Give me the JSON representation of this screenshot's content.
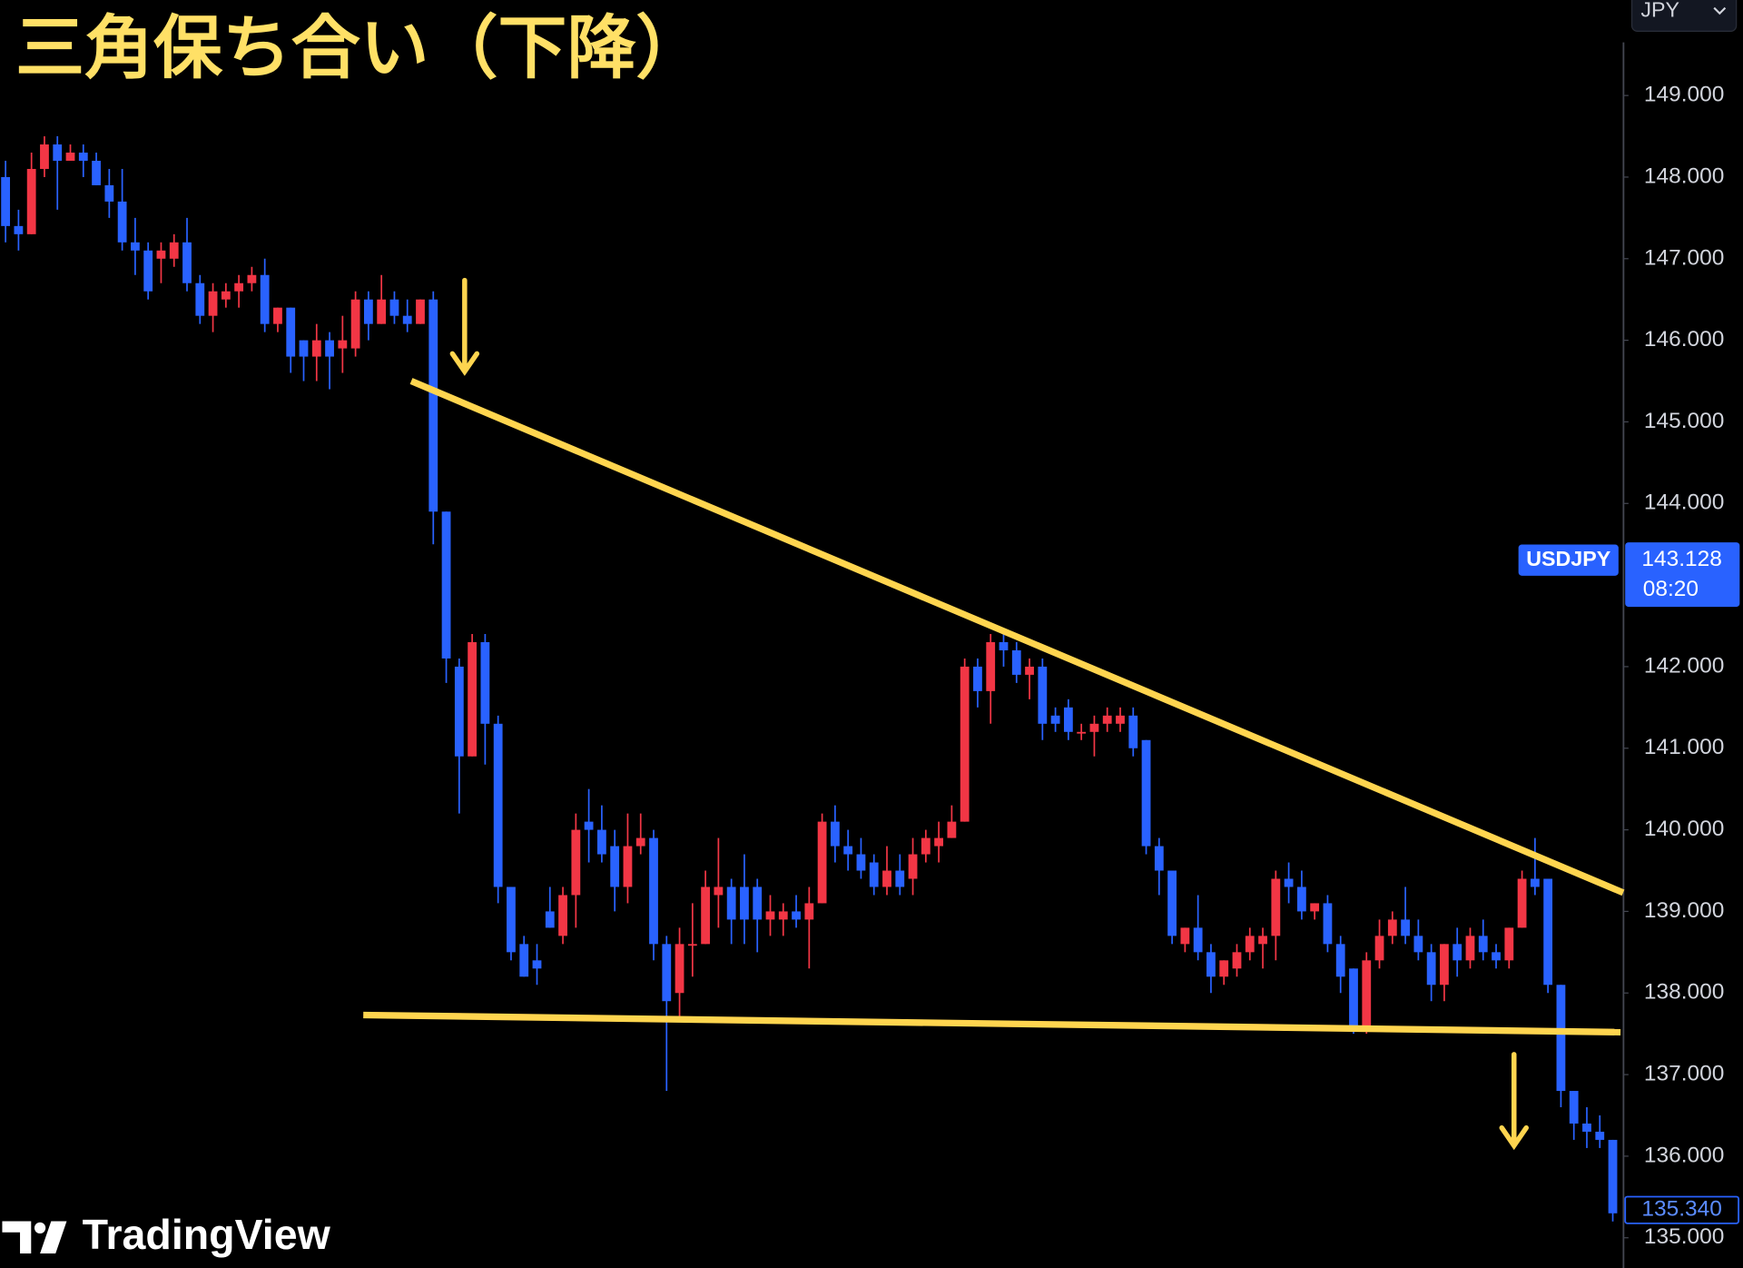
{
  "chart_data": {
    "type": "candlestick",
    "title": "三角保ち合い（下降）",
    "symbol": "USDJPY",
    "quote_currency": "JPY",
    "watermark": "TradingView",
    "up_color": "#f23645",
    "down_color": "#2962ff",
    "open": [
      148.0,
      147.4,
      147.3,
      148.1,
      148.4,
      148.2,
      148.3,
      148.2,
      147.9,
      147.7,
      147.2,
      147.1,
      147.0,
      147.0,
      147.2,
      146.7,
      146.3,
      146.5,
      146.6,
      146.7,
      146.8,
      146.2,
      146.4,
      146.0,
      145.8,
      146.0,
      145.9,
      145.9,
      146.5,
      146.2,
      146.5,
      146.3,
      146.2,
      146.5,
      143.9,
      142.0,
      140.9,
      142.3,
      141.3,
      139.3,
      138.6,
      138.4,
      139.0,
      138.7,
      139.2,
      140.1,
      140.0,
      139.8,
      139.3,
      139.8,
      139.9,
      138.6,
      138.0,
      138.6,
      138.6,
      139.2,
      139.3,
      139.3,
      139.3,
      138.9,
      138.9,
      139.0,
      138.9,
      139.1,
      140.1,
      139.8,
      139.7,
      139.6,
      139.3,
      139.5,
      139.4,
      139.7,
      139.8,
      139.9,
      140.1,
      142.0,
      141.7,
      142.3,
      142.2,
      141.9,
      142.0,
      141.4,
      141.5,
      141.2,
      141.2,
      141.3,
      141.3,
      141.4,
      141.1,
      139.8,
      139.5,
      138.6,
      138.8,
      138.5,
      138.2,
      138.3,
      138.5,
      138.6,
      138.7,
      139.4,
      139.3,
      139.0,
      139.1,
      138.6,
      138.3,
      137.6,
      138.4,
      138.7,
      138.9,
      138.7,
      138.5,
      138.1,
      138.6,
      138.4,
      138.7,
      138.5,
      138.4,
      138.8,
      139.4,
      139.4,
      138.1,
      136.8,
      136.4,
      136.3,
      136.2
    ],
    "high": [
      148.2,
      147.6,
      148.3,
      148.5,
      148.5,
      148.4,
      148.4,
      148.3,
      148.1,
      148.1,
      147.5,
      147.2,
      147.2,
      147.3,
      147.5,
      146.8,
      146.7,
      146.7,
      146.8,
      146.9,
      147.0,
      146.4,
      146.4,
      146.0,
      146.2,
      146.1,
      146.3,
      146.6,
      146.6,
      146.8,
      146.6,
      146.5,
      146.5,
      146.6,
      143.9,
      142.1,
      142.4,
      142.4,
      141.4,
      139.3,
      138.7,
      138.6,
      139.3,
      139.3,
      140.2,
      140.5,
      140.3,
      140.0,
      140.2,
      140.2,
      140.0,
      138.7,
      138.8,
      139.1,
      139.5,
      139.9,
      139.4,
      139.7,
      139.4,
      139.2,
      139.1,
      139.2,
      139.3,
      140.2,
      140.3,
      140.0,
      139.9,
      139.7,
      139.8,
      139.7,
      139.9,
      140.0,
      140.1,
      140.3,
      142.1,
      142.1,
      142.4,
      142.4,
      142.3,
      142.1,
      142.1,
      141.5,
      141.6,
      141.3,
      141.4,
      141.5,
      141.5,
      141.5,
      141.1,
      139.9,
      139.5,
      138.8,
      139.2,
      138.6,
      138.4,
      138.6,
      138.8,
      138.8,
      139.5,
      139.6,
      139.5,
      139.1,
      139.2,
      138.7,
      138.3,
      138.5,
      138.9,
      139.0,
      139.3,
      138.9,
      138.6,
      138.6,
      138.8,
      138.8,
      138.9,
      138.6,
      138.8,
      139.5,
      139.9,
      139.4,
      138.1,
      136.8,
      136.6,
      136.5,
      136.2
    ],
    "low": [
      147.2,
      147.1,
      147.3,
      148.0,
      147.6,
      148.2,
      148.0,
      147.9,
      147.5,
      147.1,
      146.8,
      146.5,
      146.7,
      146.9,
      146.6,
      146.2,
      146.1,
      146.4,
      146.4,
      146.6,
      146.1,
      146.1,
      145.6,
      145.5,
      145.5,
      145.4,
      145.6,
      145.8,
      146.0,
      146.2,
      146.2,
      146.1,
      146.2,
      143.5,
      141.8,
      140.2,
      140.9,
      140.8,
      139.1,
      138.4,
      138.2,
      138.1,
      138.8,
      138.6,
      138.8,
      139.6,
      139.6,
      139.0,
      139.1,
      139.7,
      138.4,
      136.8,
      137.7,
      138.2,
      138.6,
      138.8,
      138.6,
      138.6,
      138.5,
      138.7,
      138.7,
      138.8,
      138.3,
      139.1,
      139.6,
      139.5,
      139.4,
      139.2,
      139.2,
      139.2,
      139.2,
      139.6,
      139.6,
      139.9,
      140.1,
      141.5,
      141.3,
      142.0,
      141.8,
      141.6,
      141.1,
      141.2,
      141.1,
      141.1,
      140.9,
      141.2,
      141.2,
      140.9,
      139.7,
      139.2,
      138.6,
      138.5,
      138.4,
      138.0,
      138.1,
      138.2,
      138.4,
      138.3,
      138.4,
      139.1,
      138.9,
      138.9,
      138.5,
      138.0,
      137.5,
      137.5,
      138.3,
      138.6,
      138.6,
      138.4,
      137.9,
      137.9,
      138.2,
      138.3,
      138.4,
      138.3,
      138.3,
      138.8,
      139.2,
      138.0,
      136.6,
      136.2,
      136.1,
      136.1,
      135.2
    ],
    "close": [
      147.4,
      147.3,
      148.1,
      148.4,
      148.2,
      148.3,
      148.2,
      147.9,
      147.7,
      147.2,
      147.1,
      146.6,
      147.1,
      147.2,
      146.7,
      146.3,
      146.6,
      146.6,
      146.7,
      146.8,
      146.2,
      146.4,
      145.8,
      145.8,
      146.0,
      145.8,
      146.0,
      146.5,
      146.2,
      146.5,
      146.3,
      146.2,
      146.5,
      143.9,
      142.1,
      140.9,
      142.3,
      141.3,
      139.3,
      138.5,
      138.2,
      138.3,
      138.8,
      139.2,
      140.0,
      140.0,
      139.7,
      139.3,
      139.8,
      139.9,
      138.6,
      137.9,
      138.6,
      138.6,
      139.3,
      139.3,
      138.9,
      138.9,
      138.9,
      139.0,
      139.0,
      138.9,
      139.1,
      140.1,
      139.8,
      139.7,
      139.5,
      139.3,
      139.5,
      139.3,
      139.7,
      139.9,
      139.9,
      140.1,
      142.0,
      141.7,
      142.3,
      142.2,
      141.9,
      142.0,
      141.3,
      141.3,
      141.2,
      141.2,
      141.3,
      141.4,
      141.4,
      141.0,
      139.8,
      139.5,
      138.7,
      138.8,
      138.5,
      138.2,
      138.4,
      138.5,
      138.7,
      138.7,
      139.4,
      139.3,
      139.0,
      139.1,
      138.6,
      138.2,
      137.6,
      138.4,
      138.7,
      138.9,
      138.7,
      138.5,
      138.1,
      138.6,
      138.4,
      138.7,
      138.5,
      138.4,
      138.8,
      139.4,
      139.3,
      138.1,
      136.8,
      136.4,
      136.3,
      136.2,
      135.3
    ],
    "ylim": [
      134.63,
      150.17
    ],
    "yticks": [
      {
        "value": 135,
        "label": "135.000"
      },
      {
        "value": 136,
        "label": "136.000"
      },
      {
        "value": 137,
        "label": "137.000"
      },
      {
        "value": 138,
        "label": "138.000"
      },
      {
        "value": 139,
        "label": "139.000"
      },
      {
        "value": 140,
        "label": "140.000"
      },
      {
        "value": 141,
        "label": "141.000"
      },
      {
        "value": 142,
        "label": "142.000"
      },
      {
        "value": 144,
        "label": "144.000"
      },
      {
        "value": 145,
        "label": "145.000"
      },
      {
        "value": 146,
        "label": "146.000"
      },
      {
        "value": 147,
        "label": "147.000"
      },
      {
        "value": 148,
        "label": "148.000"
      },
      {
        "value": 149,
        "label": "149.000"
      }
    ],
    "current_price": 143.128,
    "current_time": "08:20",
    "last_price": {
      "value": 135.34,
      "label": "135.340"
    },
    "trendlines": [
      {
        "x": [
          31.3,
          124.8
        ],
        "y": [
          145.5,
          139.23
        ],
        "color": "#ffd54f"
      },
      {
        "x": [
          27.6,
          124.6
        ],
        "y": [
          137.73,
          137.52
        ],
        "color": "#ffd54f"
      }
    ]
  }
}
